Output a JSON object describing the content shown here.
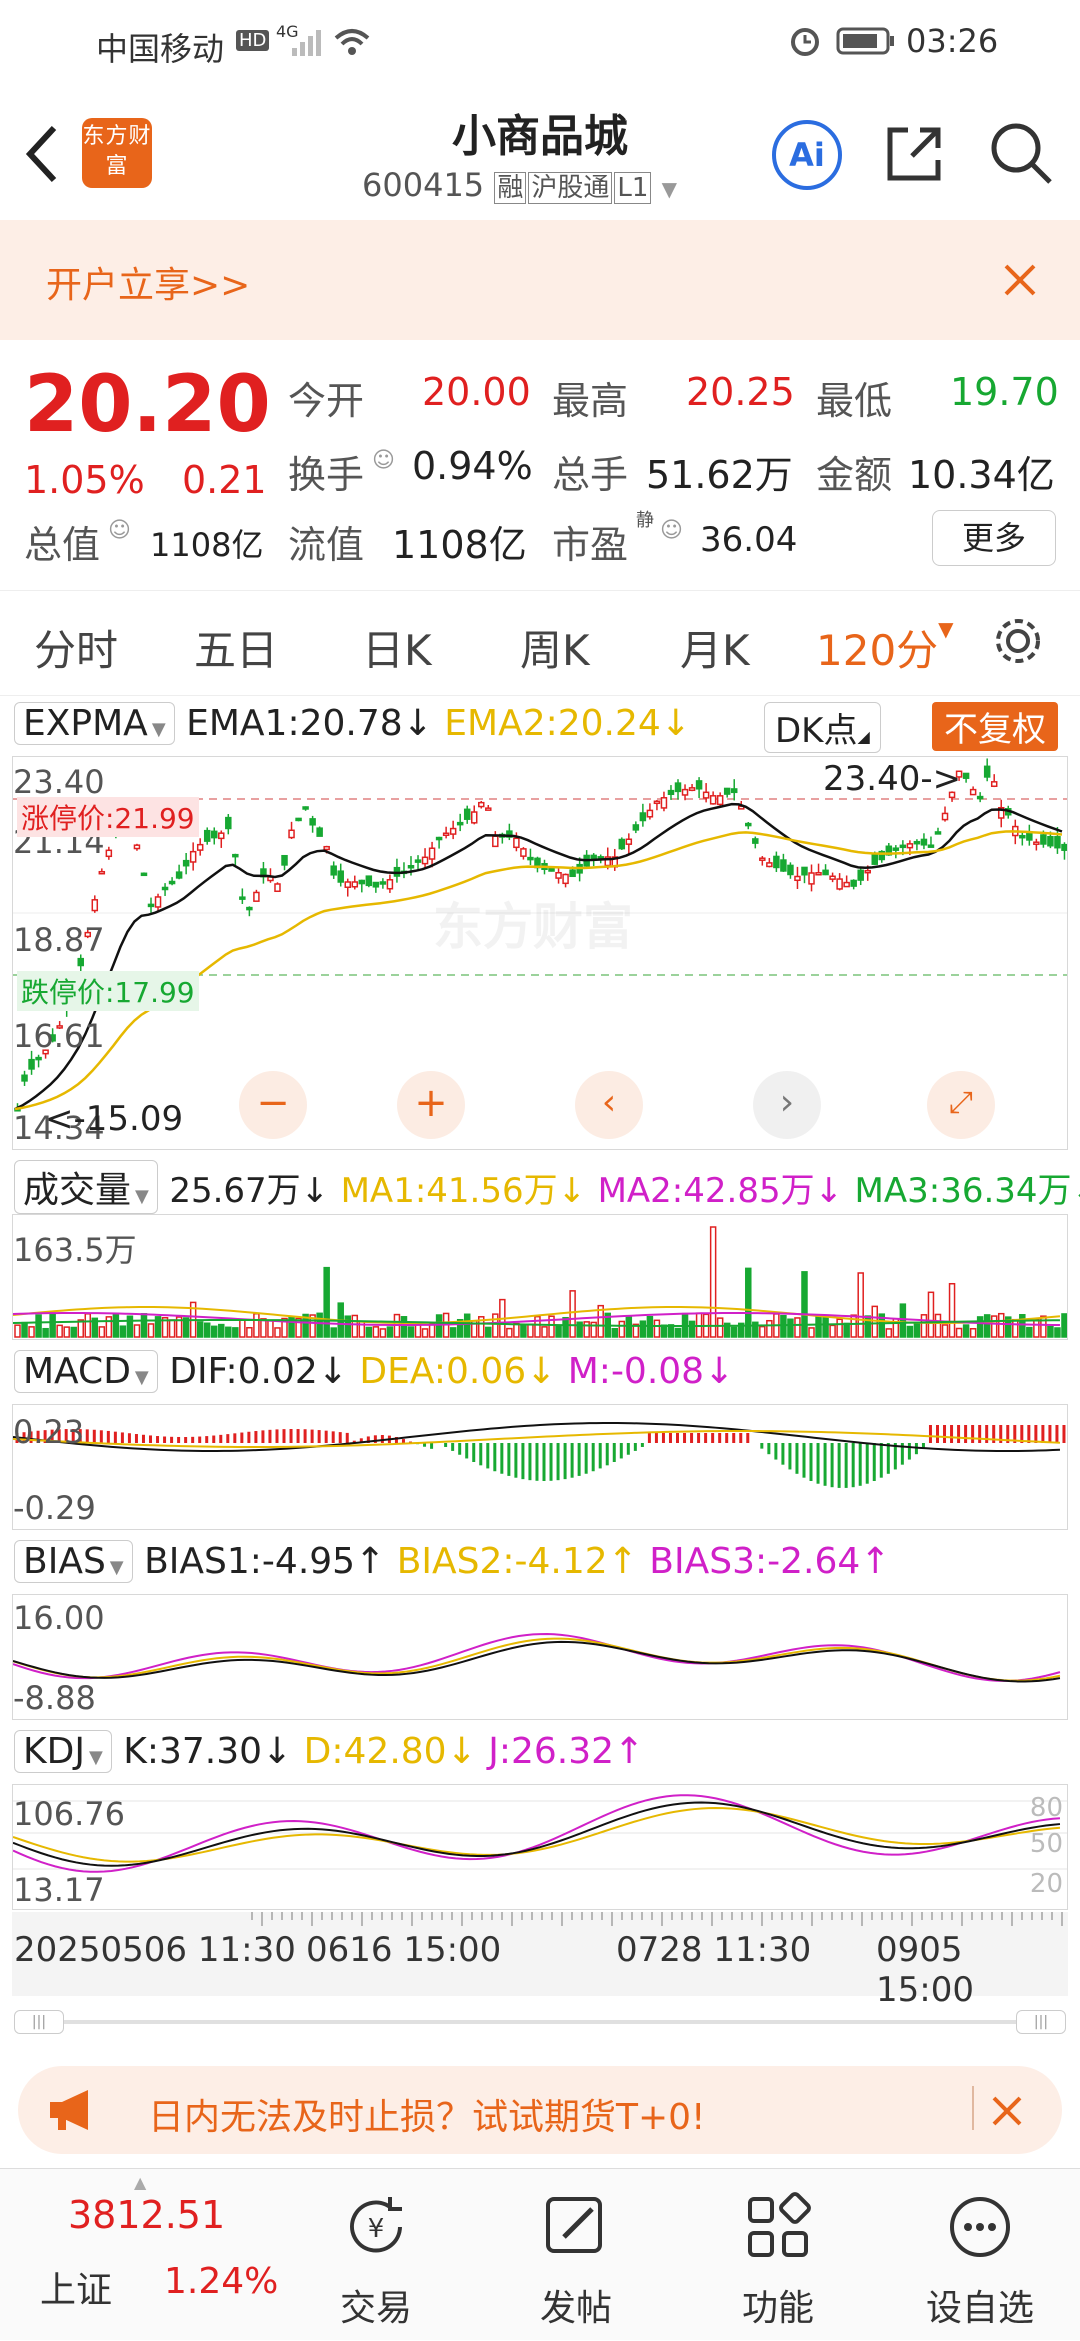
{
  "status_bar": {
    "carrier": "中国移动",
    "hd": "HD",
    "net": "4G",
    "time": "03:26"
  },
  "header": {
    "logo": "东方财富",
    "title": "小商品城",
    "code": "600415",
    "tags": [
      "融",
      "沪股通",
      "L1"
    ],
    "ai_label": "Ai"
  },
  "banner": {
    "text": "开户立享>>"
  },
  "quote": {
    "price": "20.20",
    "change_pct": "1.05%",
    "change": "0.21",
    "open_label": "今开",
    "open": "20.00",
    "high_label": "最高",
    "high": "20.25",
    "low_label": "最低",
    "low": "19.70",
    "turnover_label": "换手",
    "turnover": "0.94%",
    "volume_label": "总手",
    "volume": "51.62万",
    "amount_label": "金额",
    "amount": "10.34亿",
    "mktcap_label": "总值",
    "mktcap": "1108亿",
    "float_label": "流值",
    "float_cap": "1108亿",
    "pe_label": "市盈",
    "pe_sup": "静",
    "pe": "36.04",
    "more_label": "更多"
  },
  "tabs": [
    "分时",
    "五日",
    "日K",
    "周K",
    "月K",
    "120分"
  ],
  "chart": {
    "indicator": "EXPMA",
    "ema1": "EMA1:20.78↓",
    "ema2": "EMA2:20.24↓",
    "dk_label": "DK点",
    "adjust_label": "不复权",
    "y_top": "23.40",
    "y_2": "21.14",
    "y_3": "18.87",
    "y_4": "16.61",
    "y_bottom": "14.34",
    "limit_up": "涨停价:21.99",
    "limit_down": "跌停价:17.99",
    "max_label": "23.40->",
    "min_label": "<-15.09",
    "watermark": "东方财富"
  },
  "volume": {
    "name": "成交量",
    "val": "25.67万↓",
    "ma1": "MA1:41.56万↓",
    "ma2": "MA2:42.85万↓",
    "ma3": "MA3:36.34万↓",
    "y_top": "163.5万"
  },
  "macd": {
    "name": "MACD",
    "dif": "DIF:0.02↓",
    "dea": "DEA:0.06↓",
    "m": "M:-0.08↓",
    "y_top": "0.23",
    "y_bottom": "-0.29"
  },
  "bias": {
    "name": "BIAS",
    "b1": "BIAS1:-4.95↑",
    "b2": "BIAS2:-4.12↑",
    "b3": "BIAS3:-2.64↑",
    "y_top": "16.00",
    "y_bottom": "-8.88"
  },
  "kdj": {
    "name": "KDJ",
    "k": "K:37.30↓",
    "d": "D:42.80↓",
    "j": "J:26.32↑",
    "y_top": "106.76",
    "y_bottom": "13.17",
    "r80": "80",
    "r50": "50",
    "r20": "20"
  },
  "time_axis": [
    "20250506 11:30",
    "0616 15:00",
    "0728 11:30",
    "0905 15:00"
  ],
  "ad": {
    "text": "日内无法及时止损？试试期货T+0!"
  },
  "footer": {
    "index_value": "3812.51",
    "index_name": "上证",
    "index_pct": "1.24%",
    "trade": "交易",
    "post": "发帖",
    "function": "功能",
    "watchlist": "设自选"
  },
  "colors": {
    "up": "#e02020",
    "down": "#17a832",
    "accent": "#e8651a",
    "ema2": "#e6b800",
    "ma2": "#d020c8"
  }
}
